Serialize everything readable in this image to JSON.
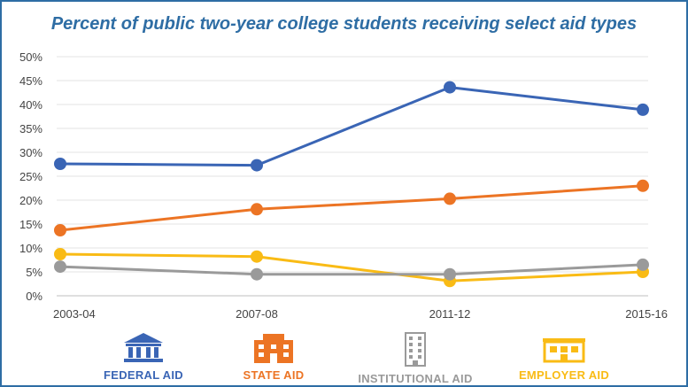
{
  "chart_data": {
    "type": "line",
    "title": "Percent of public two-year college students receiving select aid types",
    "categories": [
      "2003-04",
      "2007-08",
      "2011-12",
      "2015-16"
    ],
    "y_ticks": [
      "0%",
      "5%",
      "10%",
      "15%",
      "20%",
      "25%",
      "30%",
      "35%",
      "40%",
      "45%",
      "50%"
    ],
    "ylim": [
      0,
      50
    ],
    "grid": "horizontal",
    "legend_position": "bottom",
    "series": [
      {
        "name": "FEDERAL AID",
        "color": "#3a65b5",
        "values": [
          27.6,
          27.3,
          43.6,
          38.9
        ]
      },
      {
        "name": "STATE AID",
        "color": "#ec7424",
        "values": [
          13.7,
          18.1,
          20.3,
          23.0
        ]
      },
      {
        "name": "INSTITUTIONAL AID",
        "color": "#9a9a9a",
        "values": [
          6.1,
          4.5,
          4.5,
          6.5
        ]
      },
      {
        "name": "EMPLOYER AID",
        "color": "#f9bb15",
        "values": [
          8.7,
          8.2,
          3.1,
          5.0
        ]
      }
    ]
  },
  "legend": {
    "federal": {
      "label": "FEDERAL AID",
      "icon": "bank-icon",
      "color": "#3a65b5"
    },
    "state": {
      "label": "STATE AID",
      "icon": "state-building-icon",
      "color": "#ec7424"
    },
    "institutional": {
      "label": "INSTITUTIONAL AID",
      "icon": "office-tower-icon",
      "color": "#9a9a9a"
    },
    "employer": {
      "label": "EMPLOYER AID",
      "icon": "factory-icon",
      "color": "#f9bb15"
    }
  }
}
